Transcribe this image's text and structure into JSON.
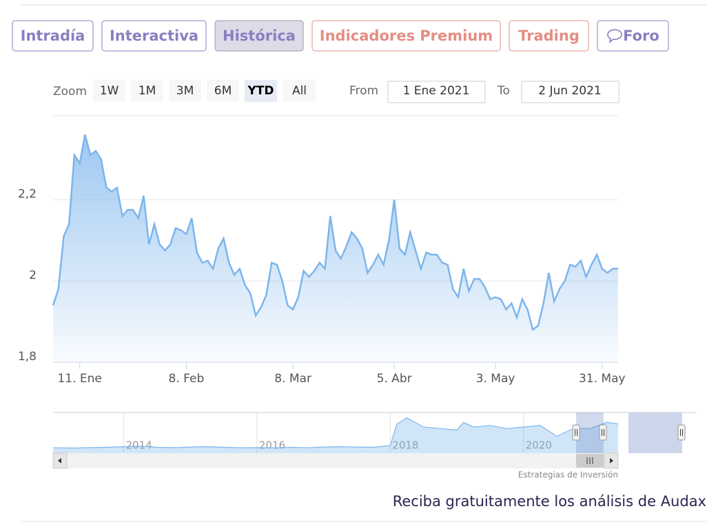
{
  "tabs": [
    "Intradía",
    "Interactiva",
    "Histórica",
    "Indicadores Premium",
    "Trading",
    "Foro"
  ],
  "zoom": {
    "label": "Zoom",
    "buttons": [
      "1W",
      "1M",
      "3M",
      "6M",
      "YTD",
      "All"
    ]
  },
  "range": {
    "from_label": "From",
    "from": "1 Ene 2021",
    "to_label": "To",
    "to": "2 Jun 2021"
  },
  "chart_data": [
    {
      "type": "area",
      "color": "#7cb5ec",
      "grid": true,
      "values": [
        1.94,
        1.98,
        2.11,
        2.14,
        2.31,
        2.29,
        2.36,
        2.31,
        2.32,
        2.3,
        2.23,
        2.22,
        2.23,
        2.16,
        2.175,
        2.175,
        2.155,
        2.21,
        2.09,
        2.14,
        2.09,
        2.075,
        2.09,
        2.13,
        2.125,
        2.115,
        2.155,
        2.07,
        2.045,
        2.05,
        2.03,
        2.08,
        2.105,
        2.045,
        2.015,
        2.03,
        1.99,
        1.97,
        1.915,
        1.935,
        1.965,
        2.045,
        2.04,
        2.0,
        1.94,
        1.93,
        1.96,
        2.025,
        2.01,
        2.025,
        2.045,
        2.03,
        2.16,
        2.075,
        2.055,
        2.085,
        2.12,
        2.105,
        2.08,
        2.02,
        2.04,
        2.065,
        2.04,
        2.1,
        2.2,
        2.08,
        2.065,
        2.12,
        2.075,
        2.03,
        2.07,
        2.065,
        2.065,
        2.045,
        2.04,
        1.98,
        1.96,
        2.03,
        1.975,
        2.005,
        2.005,
        1.985,
        1.955,
        1.96,
        1.955,
        1.93,
        1.945,
        1.91,
        1.955,
        1.93,
        1.88,
        1.89,
        1.945,
        2.02,
        1.95,
        1.98,
        2.0,
        2.04,
        2.035,
        2.05,
        2.01,
        2.04,
        2.065,
        2.03,
        2.02,
        2.03,
        2.03
      ],
      "xlim": [
        0,
        106
      ],
      "xticks": [
        {
          "value": 5,
          "label": "11. Ene"
        },
        {
          "value": 25,
          "label": "8. Feb"
        },
        {
          "value": 45,
          "label": "8. Mar"
        },
        {
          "value": 64,
          "label": "5. Abr"
        },
        {
          "value": 83,
          "label": "3. May"
        },
        {
          "value": 103,
          "label": "31. May"
        }
      ],
      "ylim": [
        1.8,
        2.4
      ],
      "yticks": [
        {
          "value": 1.8,
          "label": "1,8"
        },
        2,
        {
          "value": 2.2,
          "label": "2,2"
        }
      ]
    },
    {
      "type": "area",
      "color": "#7cb5ec",
      "x_grid": true,
      "x": [
        2012.94,
        2013.25,
        2013.5,
        2013.75,
        2014,
        2014.25,
        2014.5,
        2014.75,
        2015,
        2015.25,
        2015.5,
        2015.75,
        2016,
        2016.25,
        2016.5,
        2016.75,
        2017,
        2017.25,
        2017.5,
        2017.75,
        2018,
        2018.1,
        2018.25,
        2018.5,
        2018.75,
        2019,
        2019.1,
        2019.25,
        2019.5,
        2019.75,
        2020,
        2020.25,
        2020.5,
        2020.75,
        2021,
        2021.25,
        2021.42
      ],
      "values": [
        0.35,
        0.33,
        0.36,
        0.38,
        0.42,
        0.45,
        0.38,
        0.36,
        0.4,
        0.42,
        0.38,
        0.35,
        0.36,
        0.34,
        0.38,
        0.35,
        0.4,
        0.42,
        0.4,
        0.38,
        0.5,
        1.9,
        2.3,
        1.7,
        1.6,
        1.5,
        2.0,
        1.7,
        1.8,
        1.6,
        1.7,
        1.8,
        1.1,
        1.6,
        1.6,
        2.0,
        1.9
      ],
      "xlim": [
        2012.94,
        2021.42
      ],
      "xticks": [
        2014,
        2016,
        2018,
        2020
      ],
      "ylim": [
        0,
        2.6
      ]
    }
  ],
  "credit": "Estrategias de Inversión",
  "footer": "Reciba gratuitamente los análisis de Audax"
}
